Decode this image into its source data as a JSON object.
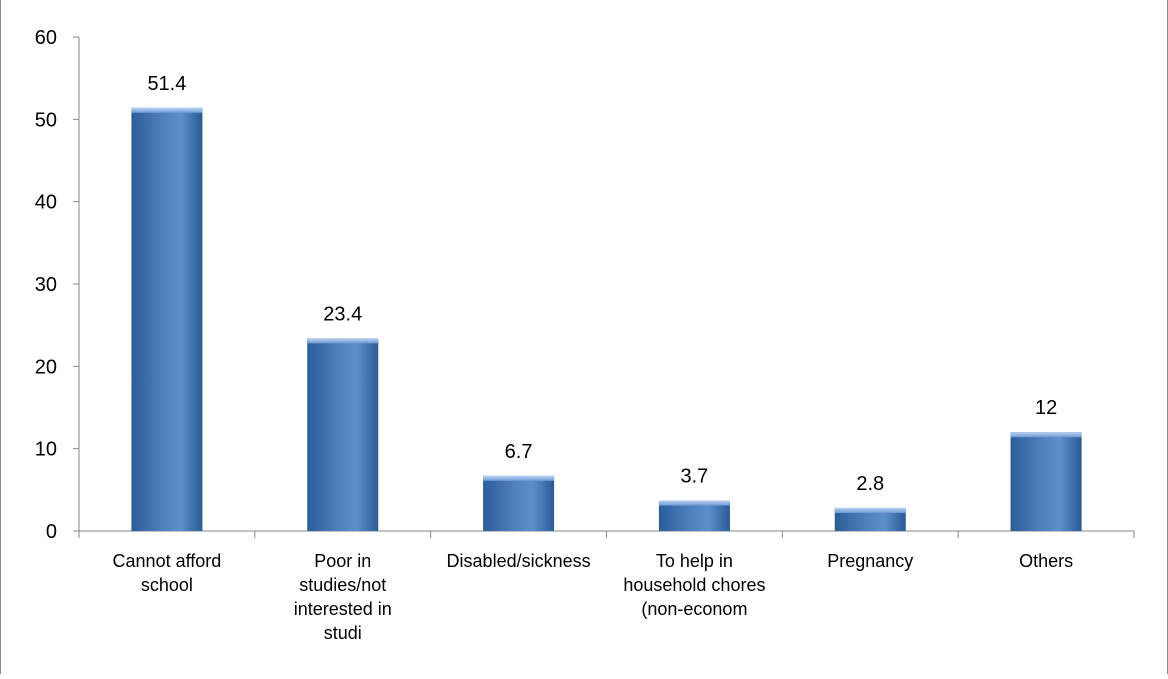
{
  "chart_data": {
    "type": "bar",
    "categories": [
      [
        "Cannot afford",
        "school"
      ],
      [
        "Poor in",
        "studies/not",
        "interested in",
        "studi"
      ],
      [
        "Disabled/sickness"
      ],
      [
        "To help in",
        "household chores",
        "(non-econom"
      ],
      [
        "Pregnancy"
      ],
      [
        "Others"
      ]
    ],
    "values": [
      51.4,
      23.4,
      6.7,
      3.7,
      2.8,
      12
    ],
    "data_labels": [
      "51.4",
      "23.4",
      "6.7",
      "3.7",
      "2.8",
      "12"
    ],
    "ylim": [
      0,
      60
    ],
    "yticks": [
      "0",
      "10",
      "20",
      "30",
      "40",
      "50",
      "60"
    ],
    "grid": false,
    "legend": "none",
    "colors": {
      "bar": "#4f81bd",
      "bar_dark": "#2a5a95",
      "bar_light": "#8fb4e3",
      "axis": "#868686",
      "frame": "#8c8c8c"
    }
  }
}
